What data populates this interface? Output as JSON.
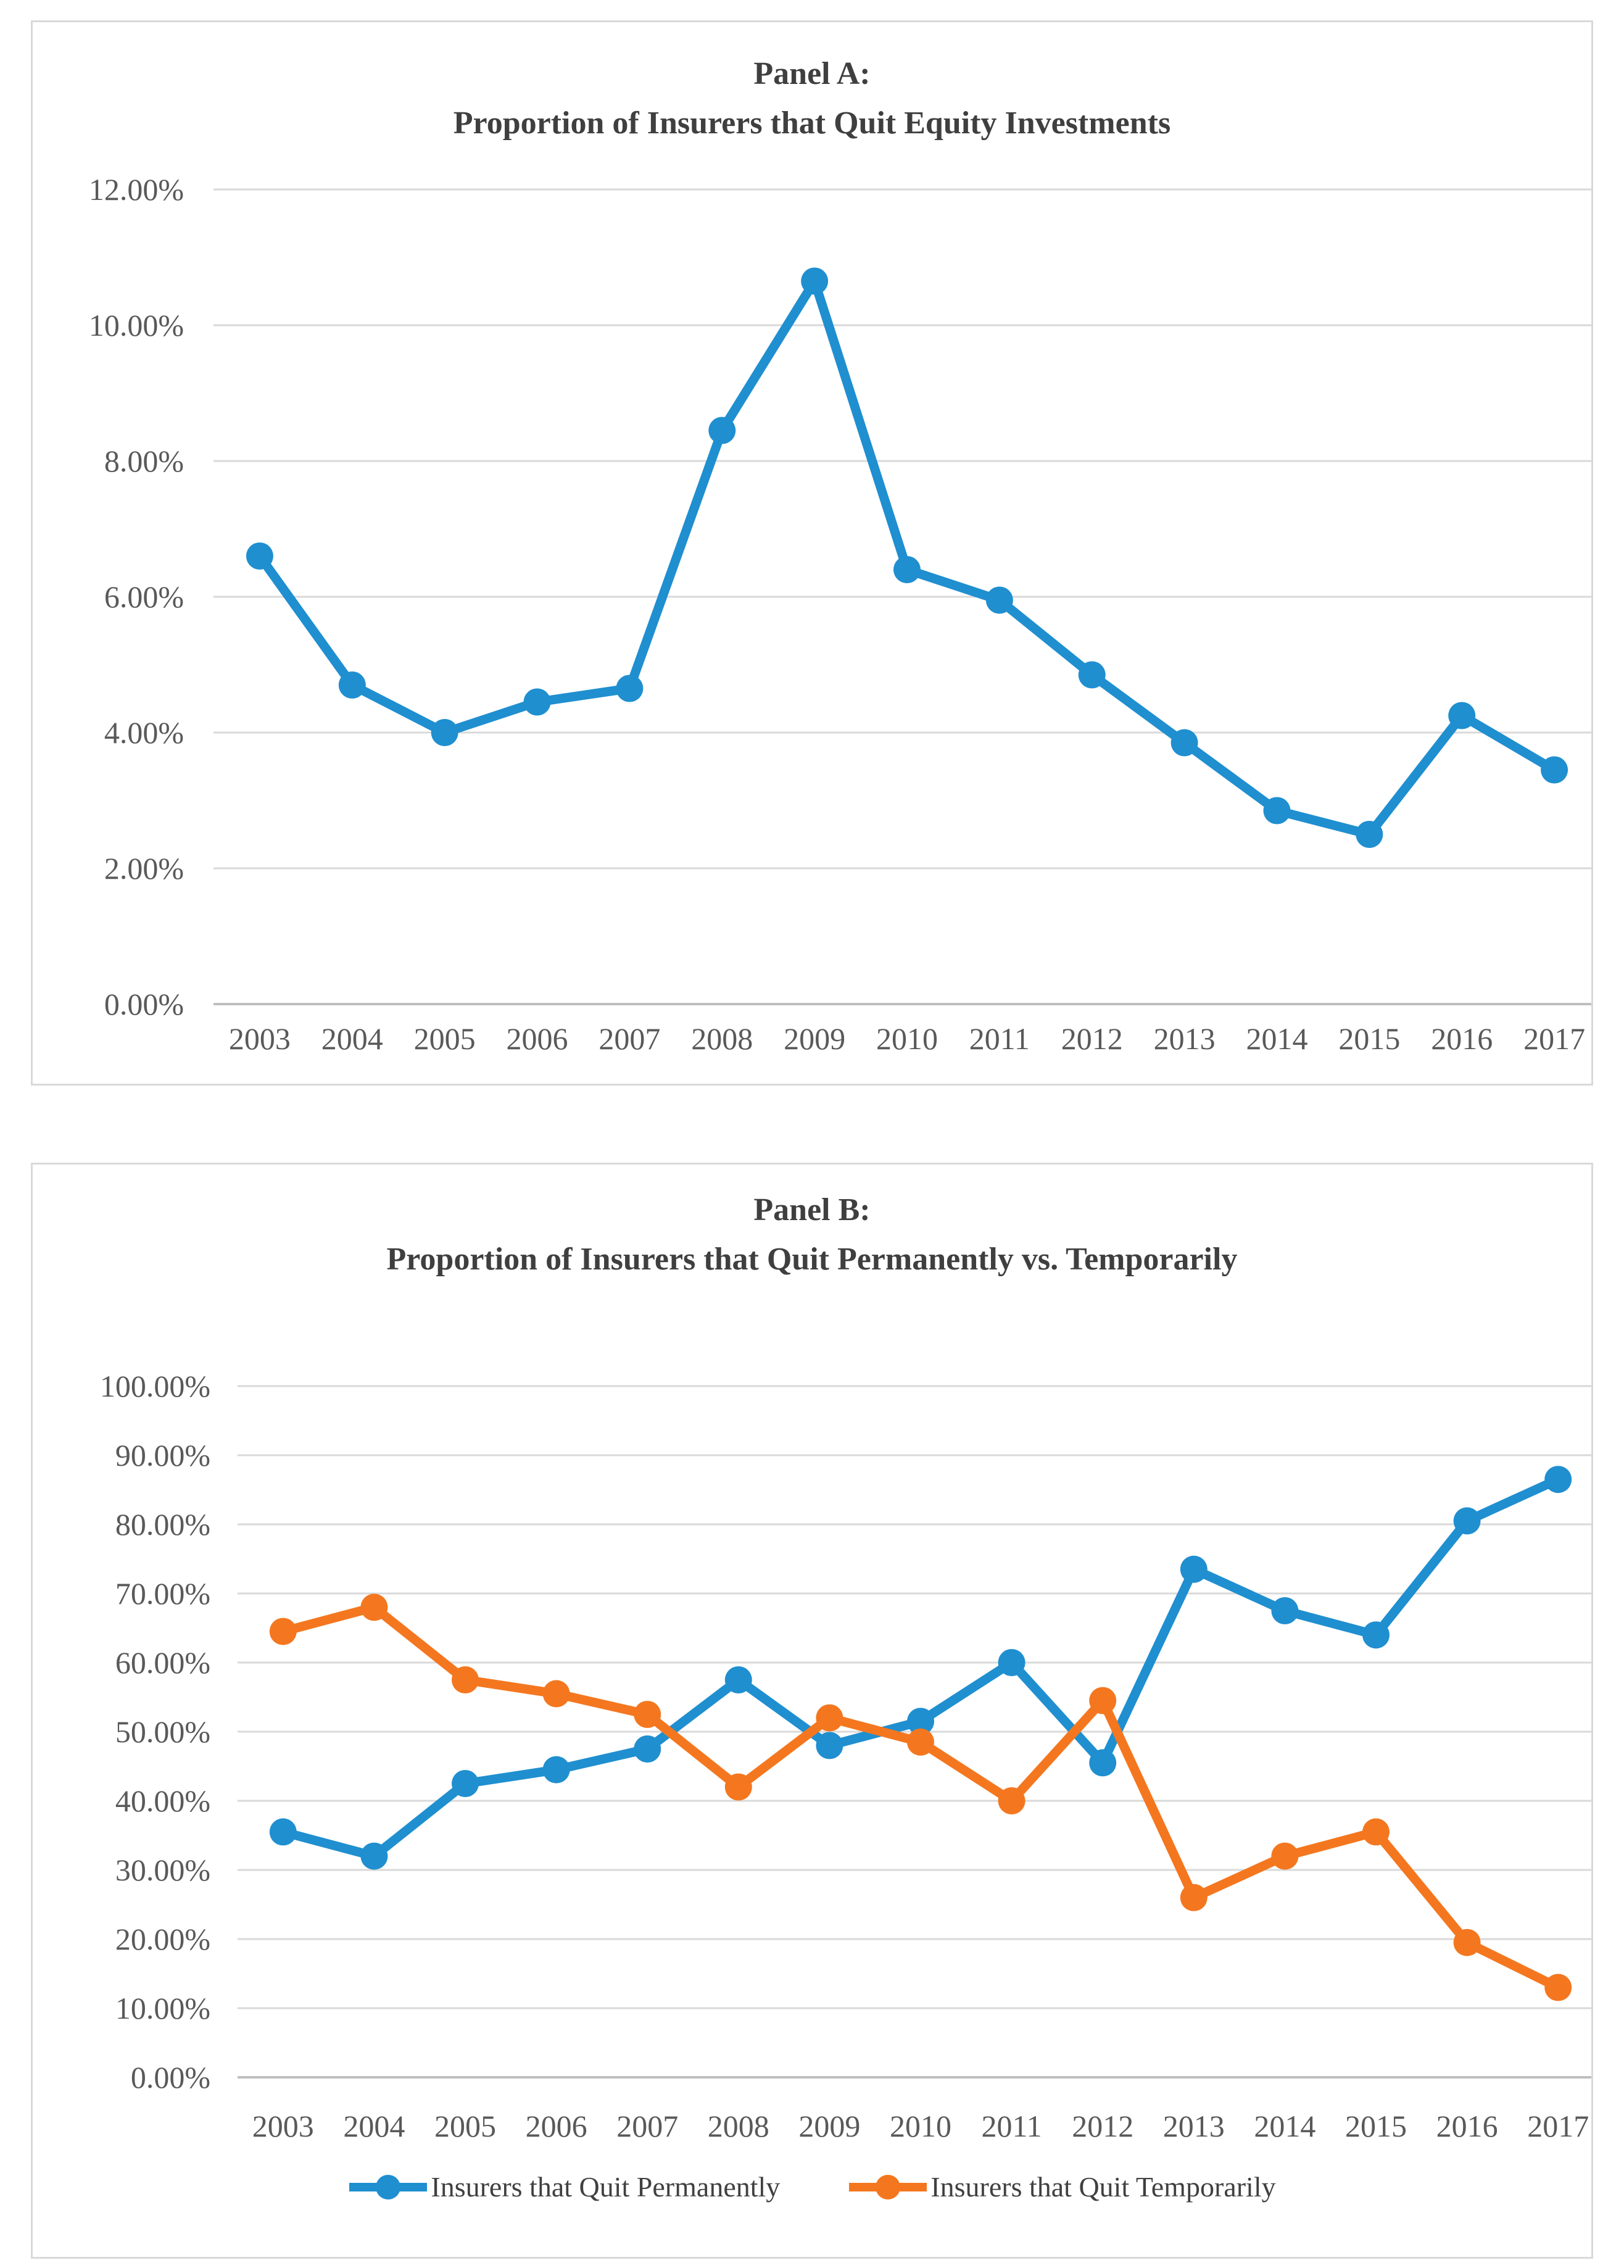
{
  "figure": {
    "background": "#ffffff",
    "panel_border_color": "#d9d9d9"
  },
  "colors": {
    "blue": "#1f8fd0",
    "orange": "#f4771f",
    "grid": "#d9d9d9",
    "axis": "#bfbfbf",
    "tick_text": "#595959",
    "title_text": "#3f3f3f",
    "legend_text": "#404040"
  },
  "panel_a": {
    "title_line1": "Panel A:",
    "title_line2": "Proportion of Insurers that Quit Equity Investments"
  },
  "panel_b": {
    "title_line1": "Panel B:",
    "title_line2": "Proportion of Insurers that Quit Permanently vs. Temporarily"
  },
  "chart_data": [
    {
      "type": "line",
      "title": "Panel A: Proportion of Insurers that Quit Equity Investments",
      "categories": [
        "2003",
        "2004",
        "2005",
        "2006",
        "2007",
        "2008",
        "2009",
        "2010",
        "2011",
        "2012",
        "2013",
        "2014",
        "2015",
        "2016",
        "2017"
      ],
      "series": [
        {
          "name": "Insurers that Quit Equity Investments",
          "color_key": "blue",
          "values": [
            6.6,
            4.7,
            4.0,
            4.45,
            4.65,
            8.45,
            10.65,
            6.4,
            5.95,
            4.85,
            3.85,
            2.85,
            2.5,
            4.25,
            3.45
          ]
        }
      ],
      "xlabel": "",
      "ylabel": "",
      "ylim": [
        0,
        12
      ],
      "ytick_step": 2,
      "ytick_labels": [
        "0.00%",
        "2.00%",
        "4.00%",
        "6.00%",
        "8.00%",
        "10.00%",
        "12.00%"
      ],
      "grid": true,
      "legend": "none"
    },
    {
      "type": "line",
      "title": "Panel B: Proportion of Insurers that Quit Permanently vs. Temporarily",
      "categories": [
        "2003",
        "2004",
        "2005",
        "2006",
        "2007",
        "2008",
        "2009",
        "2010",
        "2011",
        "2012",
        "2013",
        "2014",
        "2015",
        "2016",
        "2017"
      ],
      "series": [
        {
          "name": "Insurers that Quit Permanently",
          "color_key": "blue",
          "values": [
            35.5,
            32,
            42.5,
            44.5,
            47.5,
            57.5,
            48,
            51.5,
            60,
            45.5,
            73.5,
            67.5,
            64,
            80.5,
            86.5
          ]
        },
        {
          "name": "Insurers that Quit Temporarily",
          "color_key": "orange",
          "values": [
            64.5,
            68,
            57.5,
            55.5,
            52.5,
            42,
            52,
            48.5,
            40,
            54.5,
            26,
            32,
            35.5,
            19.5,
            13
          ]
        }
      ],
      "xlabel": "",
      "ylabel": "",
      "ylim": [
        0,
        100
      ],
      "ytick_step": 10,
      "ytick_labels": [
        "0.00%",
        "10.00%",
        "20.00%",
        "30.00%",
        "40.00%",
        "50.00%",
        "60.00%",
        "70.00%",
        "80.00%",
        "90.00%",
        "100.00%"
      ],
      "grid": true,
      "legend": "bottom"
    }
  ]
}
